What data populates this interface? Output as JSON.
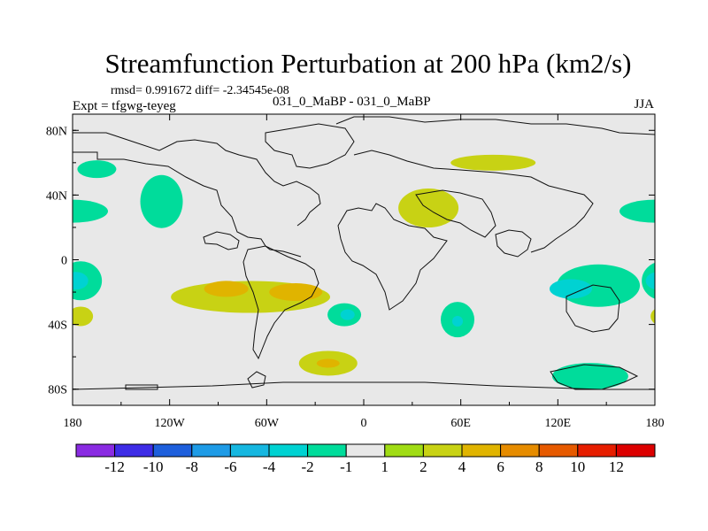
{
  "title": "Streamfunction Perturbation at 200 hPa (km2/s)",
  "stats": "rmsd= 0.991672 diff= -2.34545e-08",
  "expt": "Expt = tfgwg-teyeg",
  "case_label": "031_0_MaBP - 031_0_MaBP",
  "season": "JJA",
  "chart_data": {
    "type": "heatmap",
    "title": "Streamfunction Perturbation at 200 hPa (km2/s)",
    "xlabel": "",
    "ylabel": "",
    "xlim": [
      -180,
      180
    ],
    "ylim": [
      -90,
      90
    ],
    "x_ticks": [
      {
        "value": -180,
        "label": "180"
      },
      {
        "value": -120,
        "label": "120W"
      },
      {
        "value": -60,
        "label": "60W"
      },
      {
        "value": 0,
        "label": "0"
      },
      {
        "value": 60,
        "label": "60E"
      },
      {
        "value": 120,
        "label": "120E"
      },
      {
        "value": 180,
        "label": "180"
      }
    ],
    "y_ticks": [
      {
        "value": 80,
        "label": "80N"
      },
      {
        "value": 40,
        "label": "40N"
      },
      {
        "value": 0,
        "label": "0"
      },
      {
        "value": -40,
        "label": "40S"
      },
      {
        "value": -80,
        "label": "80S"
      }
    ],
    "contour_levels": [
      -12,
      -10,
      -8,
      -6,
      -4,
      -2,
      -1,
      1,
      2,
      4,
      6,
      8,
      10,
      12
    ],
    "level_labels": [
      "-12",
      "-10",
      "-8",
      "-6",
      "-4",
      "-2",
      "-1",
      "1",
      "2",
      "4",
      "6",
      "8",
      "10",
      "12"
    ],
    "colors": [
      "#8a2be2",
      "#3e2de6",
      "#1e5fdc",
      "#1e9be6",
      "#16b7e0",
      "#00d2d2",
      "#00dc9b",
      "#e8e8e8",
      "#a0dc14",
      "#c8d214",
      "#e0b400",
      "#e68c00",
      "#e65a00",
      "#e61e00",
      "#dc0000"
    ],
    "regions": [
      {
        "name": "north-pacific-east",
        "lon": -125,
        "lat": 36,
        "value": -2
      },
      {
        "name": "tropical-pacific-west",
        "lon": -175,
        "lat": -13,
        "value": -2
      },
      {
        "name": "tropical-pacific-west-core",
        "lon": -178,
        "lat": -13,
        "value": -4
      },
      {
        "name": "south-pacific-west",
        "lon": -175,
        "lat": -35,
        "value": 2
      },
      {
        "name": "south-america-tropics",
        "lon": -70,
        "lat": -23,
        "value": 2
      },
      {
        "name": "south-america-tropics-core",
        "lon": -85,
        "lat": -18,
        "value": 4
      },
      {
        "name": "south-america-tropics-core-2",
        "lon": -42,
        "lat": -20,
        "value": 4
      },
      {
        "name": "south-atlantic",
        "lon": -12,
        "lat": -34,
        "value": -2
      },
      {
        "name": "south-atlantic-core",
        "lon": -10,
        "lat": -34,
        "value": -4
      },
      {
        "name": "southern-ocean-atlantic",
        "lon": -22,
        "lat": -64,
        "value": 2
      },
      {
        "name": "southern-ocean-atlantic-core",
        "lon": -22,
        "lat": -64,
        "value": 4
      },
      {
        "name": "indian-ocean",
        "lon": 58,
        "lat": -37,
        "value": -2
      },
      {
        "name": "indian-ocean-core",
        "lon": 58,
        "lat": -38,
        "value": -4
      },
      {
        "name": "west-pacific-tropics",
        "lon": 145,
        "lat": -16,
        "value": -2
      },
      {
        "name": "west-pacific-tropics-core",
        "lon": 128,
        "lat": -18,
        "value": -4
      },
      {
        "name": "australia-south",
        "lon": 140,
        "lat": -72,
        "value": -2
      },
      {
        "name": "europe-asia",
        "lon": 40,
        "lat": 32,
        "value": 2
      },
      {
        "name": "north-asia",
        "lon": 80,
        "lat": 60,
        "value": 2
      },
      {
        "name": "north-pacific-west",
        "lon": 180,
        "lat": 30,
        "value": -2
      },
      {
        "name": "north-pacific-ne",
        "lon": -165,
        "lat": 56,
        "value": -2
      }
    ]
  }
}
